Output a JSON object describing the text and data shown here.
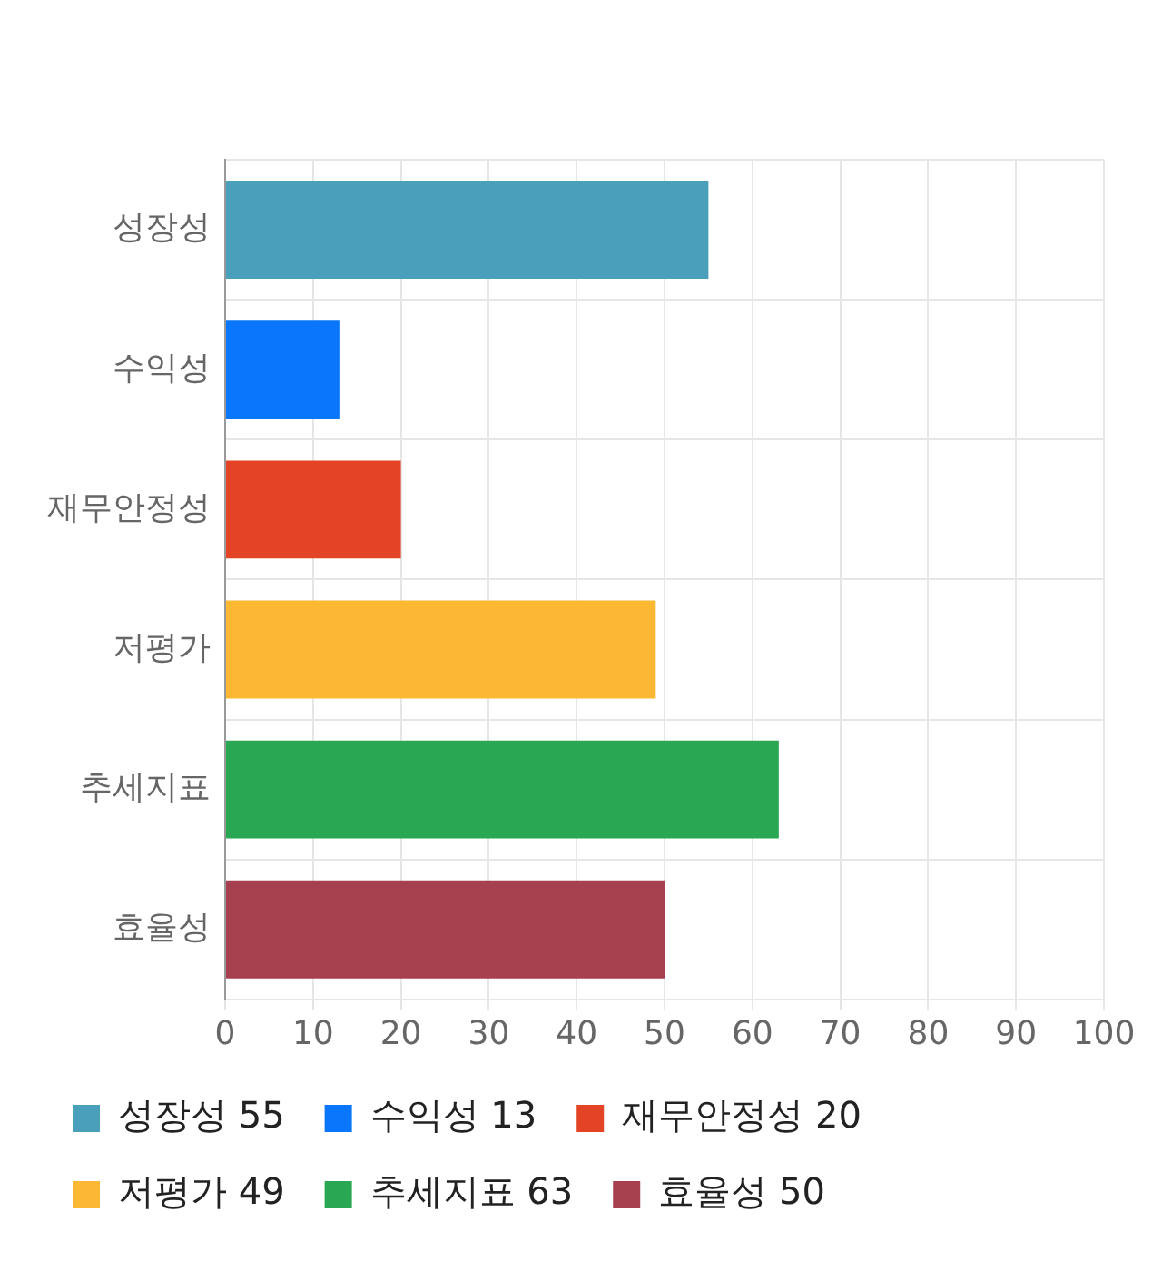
{
  "chart_data": {
    "type": "bar",
    "orientation": "horizontal",
    "categories": [
      "성장성",
      "수익성",
      "재무안정성",
      "저평가",
      "추세지표",
      "효율성"
    ],
    "series": [
      {
        "name": "성장성 55",
        "color": "#4aa0bb",
        "values": [
          55,
          null,
          null,
          null,
          null,
          null
        ]
      },
      {
        "name": "수익성 13",
        "color": "#0a76fc",
        "values": [
          null,
          13,
          null,
          null,
          null,
          null
        ]
      },
      {
        "name": "재무안정성 20",
        "color": "#e34425",
        "values": [
          null,
          null,
          20,
          null,
          null,
          null
        ]
      },
      {
        "name": "저평가 49",
        "color": "#fdb833",
        "values": [
          null,
          null,
          null,
          49,
          null,
          null
        ]
      },
      {
        "name": "추세지표 63",
        "color": "#29a753",
        "values": [
          null,
          null,
          null,
          null,
          63,
          null
        ]
      },
      {
        "name": "효율성 50",
        "color": "#a7404e",
        "values": [
          null,
          null,
          null,
          null,
          null,
          50
        ]
      }
    ],
    "xlim": [
      0,
      100
    ],
    "xticks": [
      0,
      10,
      20,
      30,
      40,
      50,
      60,
      70,
      80,
      90,
      100
    ],
    "grid": true,
    "legend": "bottom"
  }
}
